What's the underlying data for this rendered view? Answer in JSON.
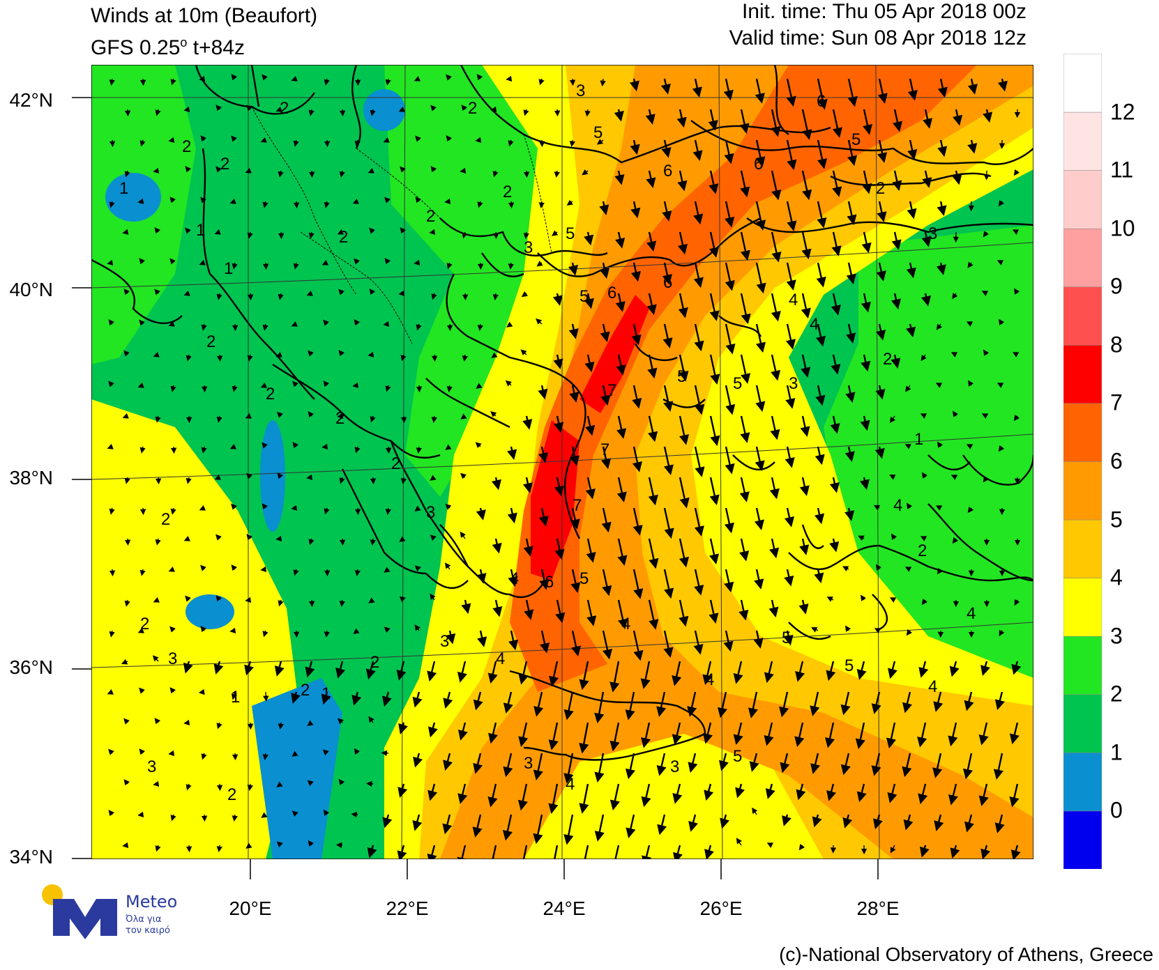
{
  "header": {
    "title": "Winds at 10m (Beaufort)",
    "model": "GFS 0.25",
    "model_degree": "o",
    "model_step": " t+84z",
    "init_time": "Init. time: Thu 05 Apr 2018 00z",
    "valid_time": "Valid time: Sun 08 Apr 2018 12z"
  },
  "axes": {
    "latitudes": [
      "42°N",
      "40°N",
      "38°N",
      "36°N",
      "34°N"
    ],
    "longitudes": [
      "20°E",
      "22°E",
      "24°E",
      "26°E",
      "28°E"
    ]
  },
  "colorbar": {
    "labels": [
      "0",
      "1",
      "2",
      "3",
      "4",
      "5",
      "6",
      "7",
      "8",
      "9",
      "10",
      "11",
      "12"
    ],
    "colors": [
      "#0000ee",
      "#0a8fd0",
      "#00c450",
      "#22e622",
      "#ffff00",
      "#ffc800",
      "#ff9b00",
      "#ff6400",
      "#ff0000",
      "#ff5050",
      "#ffa0a0",
      "#ffcccc",
      "#ffe4e4",
      "#ffffff"
    ]
  },
  "contour_labels": [
    "1",
    "2",
    "3",
    "4",
    "5",
    "6",
    "7"
  ],
  "logo": {
    "name": "Meteo",
    "tagline_1": "Όλα για",
    "tagline_2": "τον καιρό",
    "sun_color": "#f8c200",
    "brand_color": "#2a3a9e"
  },
  "credit": "(c)-National Observatory of Athens, Greece"
}
